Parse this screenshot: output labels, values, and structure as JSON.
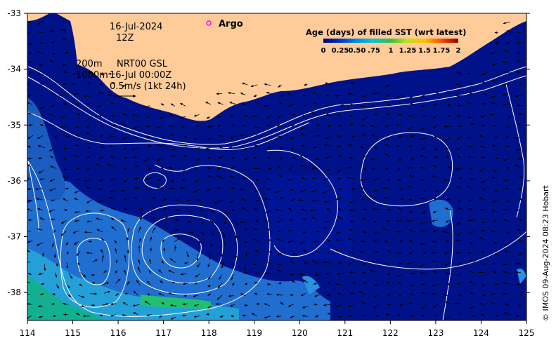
{
  "date_line": "16-Jul-2024",
  "time_line": "12Z",
  "isobath_200": "200m",
  "isobath_1000": "1000m",
  "product": "NRT00 GSL",
  "product_time": "16-Jul 00:00Z",
  "velocity_scale": "0.5m/s (1kt 24h)",
  "argo_label": "Argo",
  "legend": {
    "title": "Age (days) of filled SST (wrt latest)",
    "ticks": [
      "0",
      "0.25",
      "0.50",
      ".75",
      "1",
      "1.25",
      "1.5",
      "1.75",
      "2"
    ]
  },
  "credit": "© IMOS 09-Aug-2024 08:23 Hobart",
  "x_axis_ticks": [
    "114",
    "115",
    "116",
    "117",
    "118",
    "119",
    "120",
    "121",
    "122",
    "123",
    "124",
    "125"
  ],
  "y_axis_ticks": [
    "-33",
    "-34",
    "-35",
    "-36",
    "-37",
    "-38"
  ],
  "colors": {
    "ocean": "#00128a",
    "land": "#ffcc99",
    "age_low": "#000c80",
    "age_mid": "#2aa0e0",
    "age_high": "#00b070",
    "argo_marker": "#ff00ff",
    "contour": "#ffffff",
    "arrow": "#000000"
  }
}
